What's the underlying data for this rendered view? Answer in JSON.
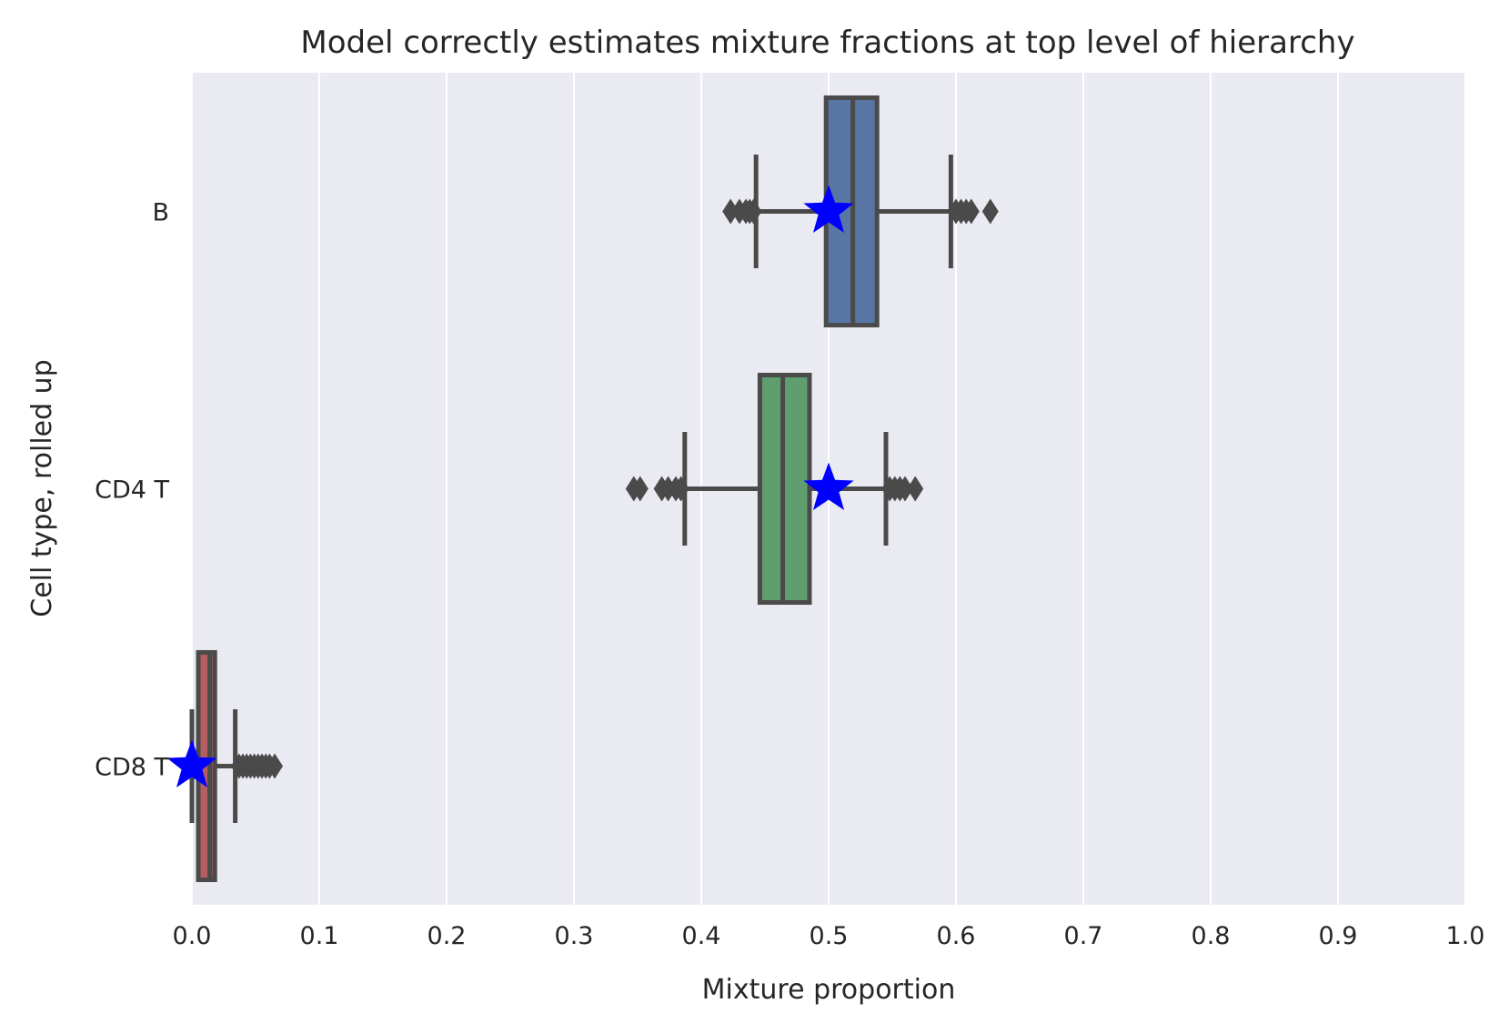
{
  "chart_data": {
    "type": "box",
    "orientation": "horizontal",
    "title": "Model correctly estimates mixture fractions at top level of hierarchy",
    "xlabel": "Mixture proportion",
    "ylabel": "Cell type, rolled up",
    "xlim": [
      0.0,
      1.0
    ],
    "xticks": [
      "0.0",
      "0.1",
      "0.2",
      "0.3",
      "0.4",
      "0.5",
      "0.6",
      "0.7",
      "0.8",
      "0.9",
      "1.0"
    ],
    "grid": true,
    "background_color": "#eaeaf2",
    "edge_color": "#4a4a4a",
    "marker_color": "#0000ff",
    "categories": [
      "B",
      "CD4 T",
      "CD8 T"
    ],
    "boxes": [
      {
        "category": "B",
        "color": "#5875a4",
        "whisker_low": 0.443,
        "q1": 0.498,
        "median": 0.519,
        "q3": 0.538,
        "whisker_high": 0.596,
        "outliers": [
          0.423,
          0.43,
          0.435,
          0.438,
          0.441,
          0.6,
          0.604,
          0.608,
          0.612,
          0.627
        ],
        "true_value": 0.5
      },
      {
        "category": "CD4 T",
        "color": "#5f9e6e",
        "whisker_low": 0.387,
        "q1": 0.446,
        "median": 0.464,
        "q3": 0.485,
        "whisker_high": 0.545,
        "outliers": [
          0.347,
          0.352,
          0.369,
          0.374,
          0.38,
          0.384,
          0.548,
          0.552,
          0.556,
          0.56,
          0.568
        ],
        "true_value": 0.5
      },
      {
        "category": "CD8 T",
        "color": "#b55d60",
        "whisker_low": 0.0,
        "q1": 0.005,
        "median": 0.014,
        "q3": 0.018,
        "whisker_high": 0.034,
        "outliers": [
          0.037,
          0.04,
          0.043,
          0.046,
          0.049,
          0.052,
          0.055,
          0.058,
          0.061,
          0.065
        ],
        "true_value": 0.0
      }
    ]
  }
}
